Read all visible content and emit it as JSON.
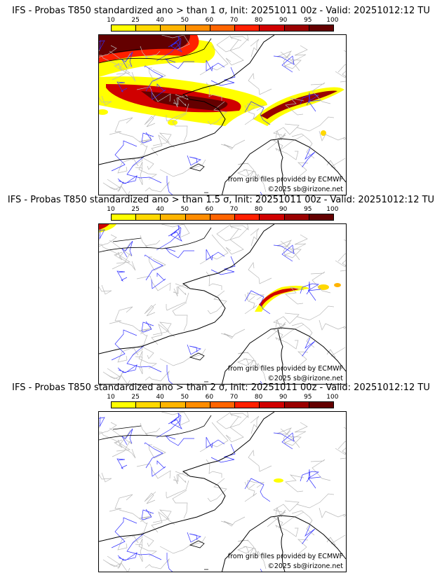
{
  "panels": [
    {
      "title": "IFS - Probas T850  standardized ano > than 1 σ, Init: 20251011 00z - Valid: 20251012:12 TU",
      "threshold": "1 σ"
    },
    {
      "title": "IFS - Probas T850  standardized ano > than 1.5 σ, Init: 20251011 00z - Valid: 20251012:12 TU",
      "threshold": "1.5 σ"
    },
    {
      "title": "IFS - Probas T850  standardized ano > than 2 σ, Init: 20251011 00z - Valid: 20251012:12 TU",
      "threshold": "2 σ"
    }
  ],
  "colorbar": {
    "ticks": [
      "10",
      "25",
      "40",
      "50",
      "60",
      "70",
      "80",
      "90",
      "95",
      "100"
    ],
    "colors": [
      "#ffff00",
      "#ffd800",
      "#ffb400",
      "#ff8c00",
      "#ff6400",
      "#ff2000",
      "#d00000",
      "#9a0000",
      "#640000"
    ]
  },
  "source_note": "from grib files provided by ECMWF",
  "copyright": "©2025 sb@irizone.net"
}
